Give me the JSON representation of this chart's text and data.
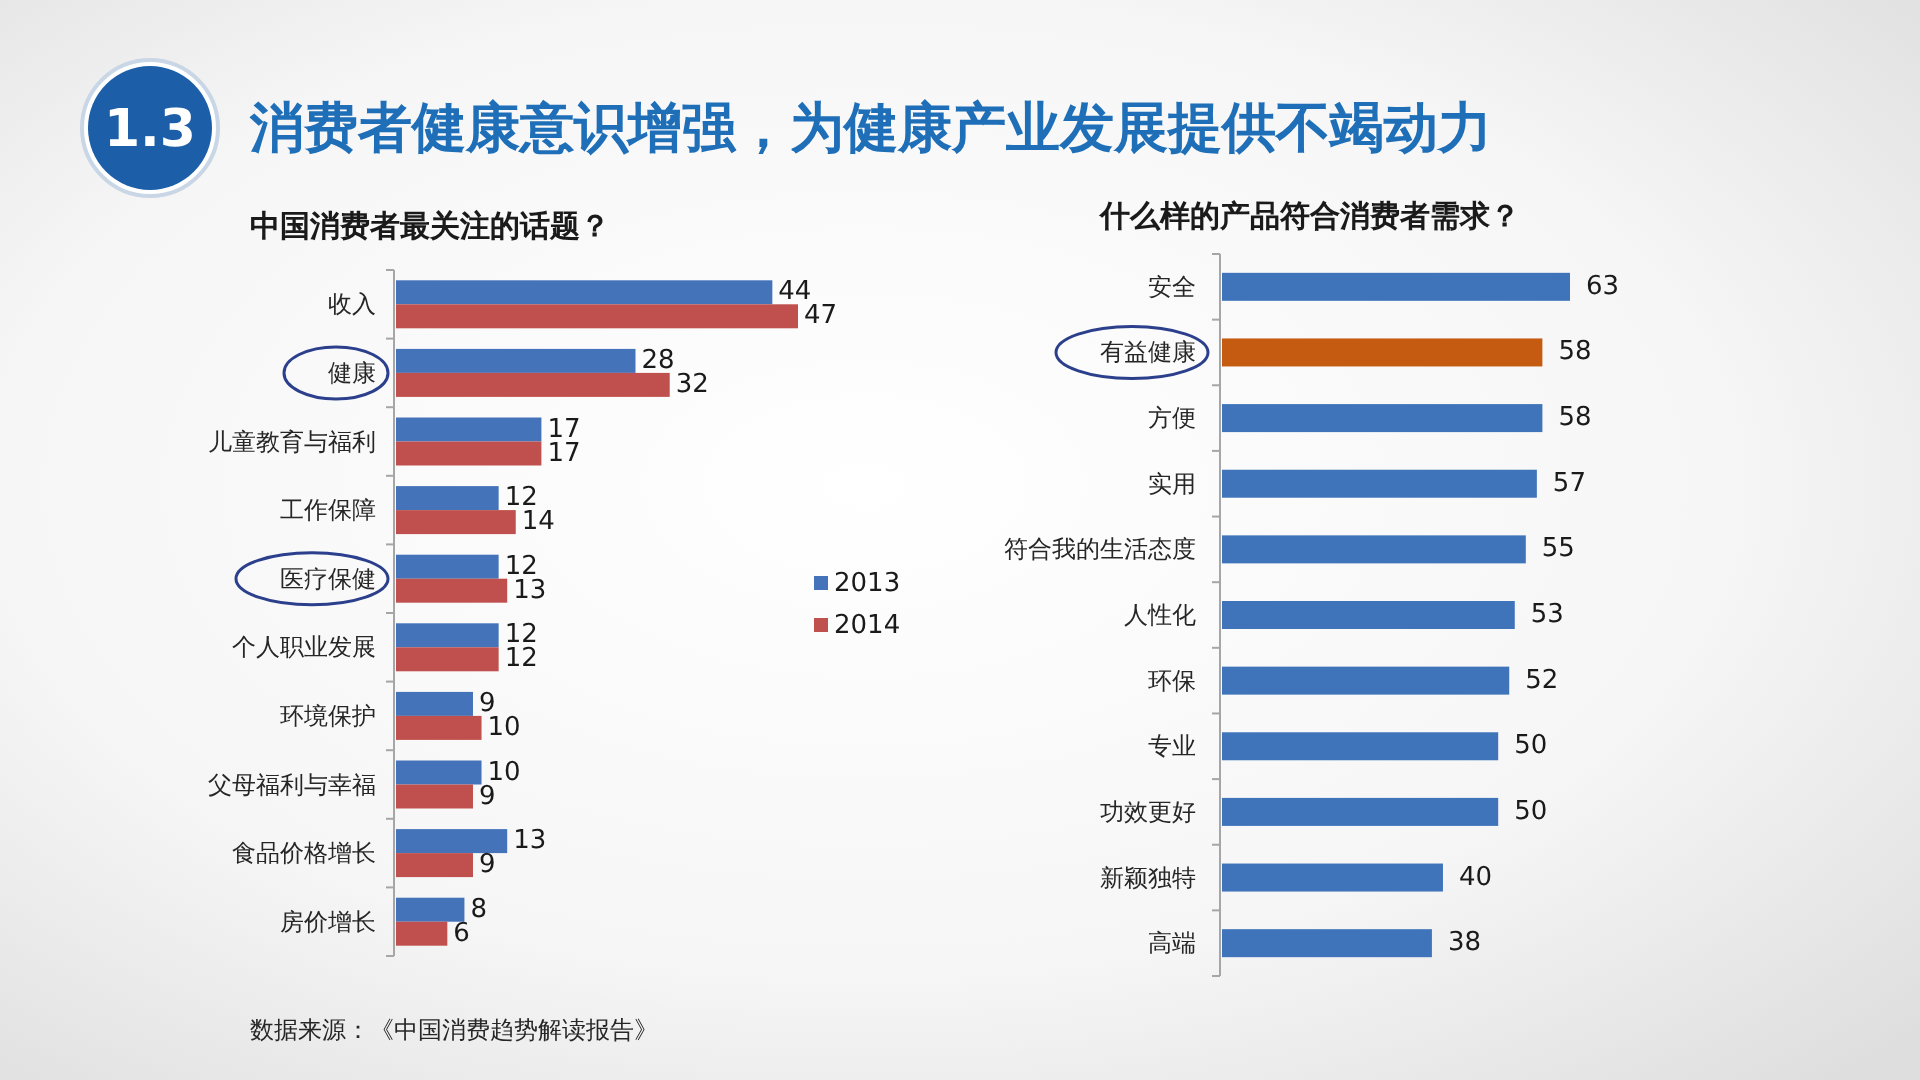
{
  "chart_data": [
    {
      "type": "other",
      "title": "消费者健康意识增强，为健康产业发展提供不竭动力",
      "annotations": [
        "1.3"
      ]
    },
    {
      "type": "bar",
      "orientation": "horizontal",
      "title": "中国消费者最关注的话题？",
      "categories": [
        "收入",
        "健康",
        "儿童教育与福利",
        "工作保障",
        "医疗保健",
        "个人职业发展",
        "环境保护",
        "父母福利与幸福",
        "食品价格增长",
        "房价增长"
      ],
      "series": [
        {
          "name": "2013",
          "color": "#4473b9",
          "values": [
            44,
            28,
            17,
            12,
            12,
            12,
            9,
            10,
            13,
            8
          ]
        },
        {
          "name": "2014",
          "color": "#c0504d",
          "values": [
            47,
            32,
            17,
            14,
            13,
            12,
            10,
            9,
            9,
            6
          ]
        }
      ],
      "data_labels": true,
      "legend": "right",
      "annotations": [
        "数据来源：《中国消费趋势解读报告》"
      ]
    },
    {
      "type": "bar",
      "orientation": "horizontal",
      "title": "什么样的产品符合消费者需求？",
      "categories": [
        "安全",
        "有益健康",
        "方便",
        "实用",
        "符合我的生活态度",
        "人性化",
        "环保",
        "专业",
        "功效更好",
        "新颖独特",
        "高端"
      ],
      "values": [
        63,
        58,
        58,
        57,
        55,
        53,
        52,
        50,
        50,
        40,
        38
      ],
      "colors": [
        "#3f74bb",
        "#c55a11",
        "#3f74bb",
        "#3f74bb",
        "#3f74bb",
        "#3f74bb",
        "#3f74bb",
        "#3f74bb",
        "#3f74bb",
        "#3f74bb",
        "#3f74bb"
      ],
      "data_labels": true
    }
  ]
}
